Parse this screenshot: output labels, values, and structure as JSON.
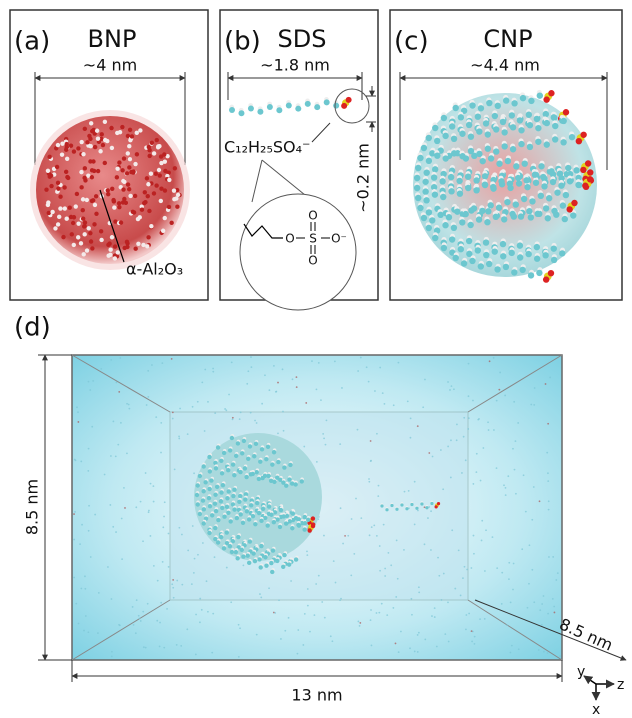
{
  "panels": [
    {
      "label": "(a)",
      "title": "BNP",
      "dimension": "~4 nm",
      "annotation": "α-Al₂O₃"
    },
    {
      "label": "(b)",
      "title": "SDS",
      "dimension": "~1.8 nm",
      "formula": "C₁₂H₂₅SO₄⁻",
      "head_size": "~0.2 nm",
      "structure": {
        "atoms": [
          "O",
          "S",
          "O",
          "O",
          "O⁻"
        ]
      }
    },
    {
      "label": "(c)",
      "title": "CNP",
      "dimension": "~4.4 nm"
    },
    {
      "label": "(d)",
      "height": "8.5 nm",
      "width": "13 nm",
      "depth": "8.5 nm",
      "axes": [
        "y",
        "z",
        "x"
      ]
    }
  ]
}
